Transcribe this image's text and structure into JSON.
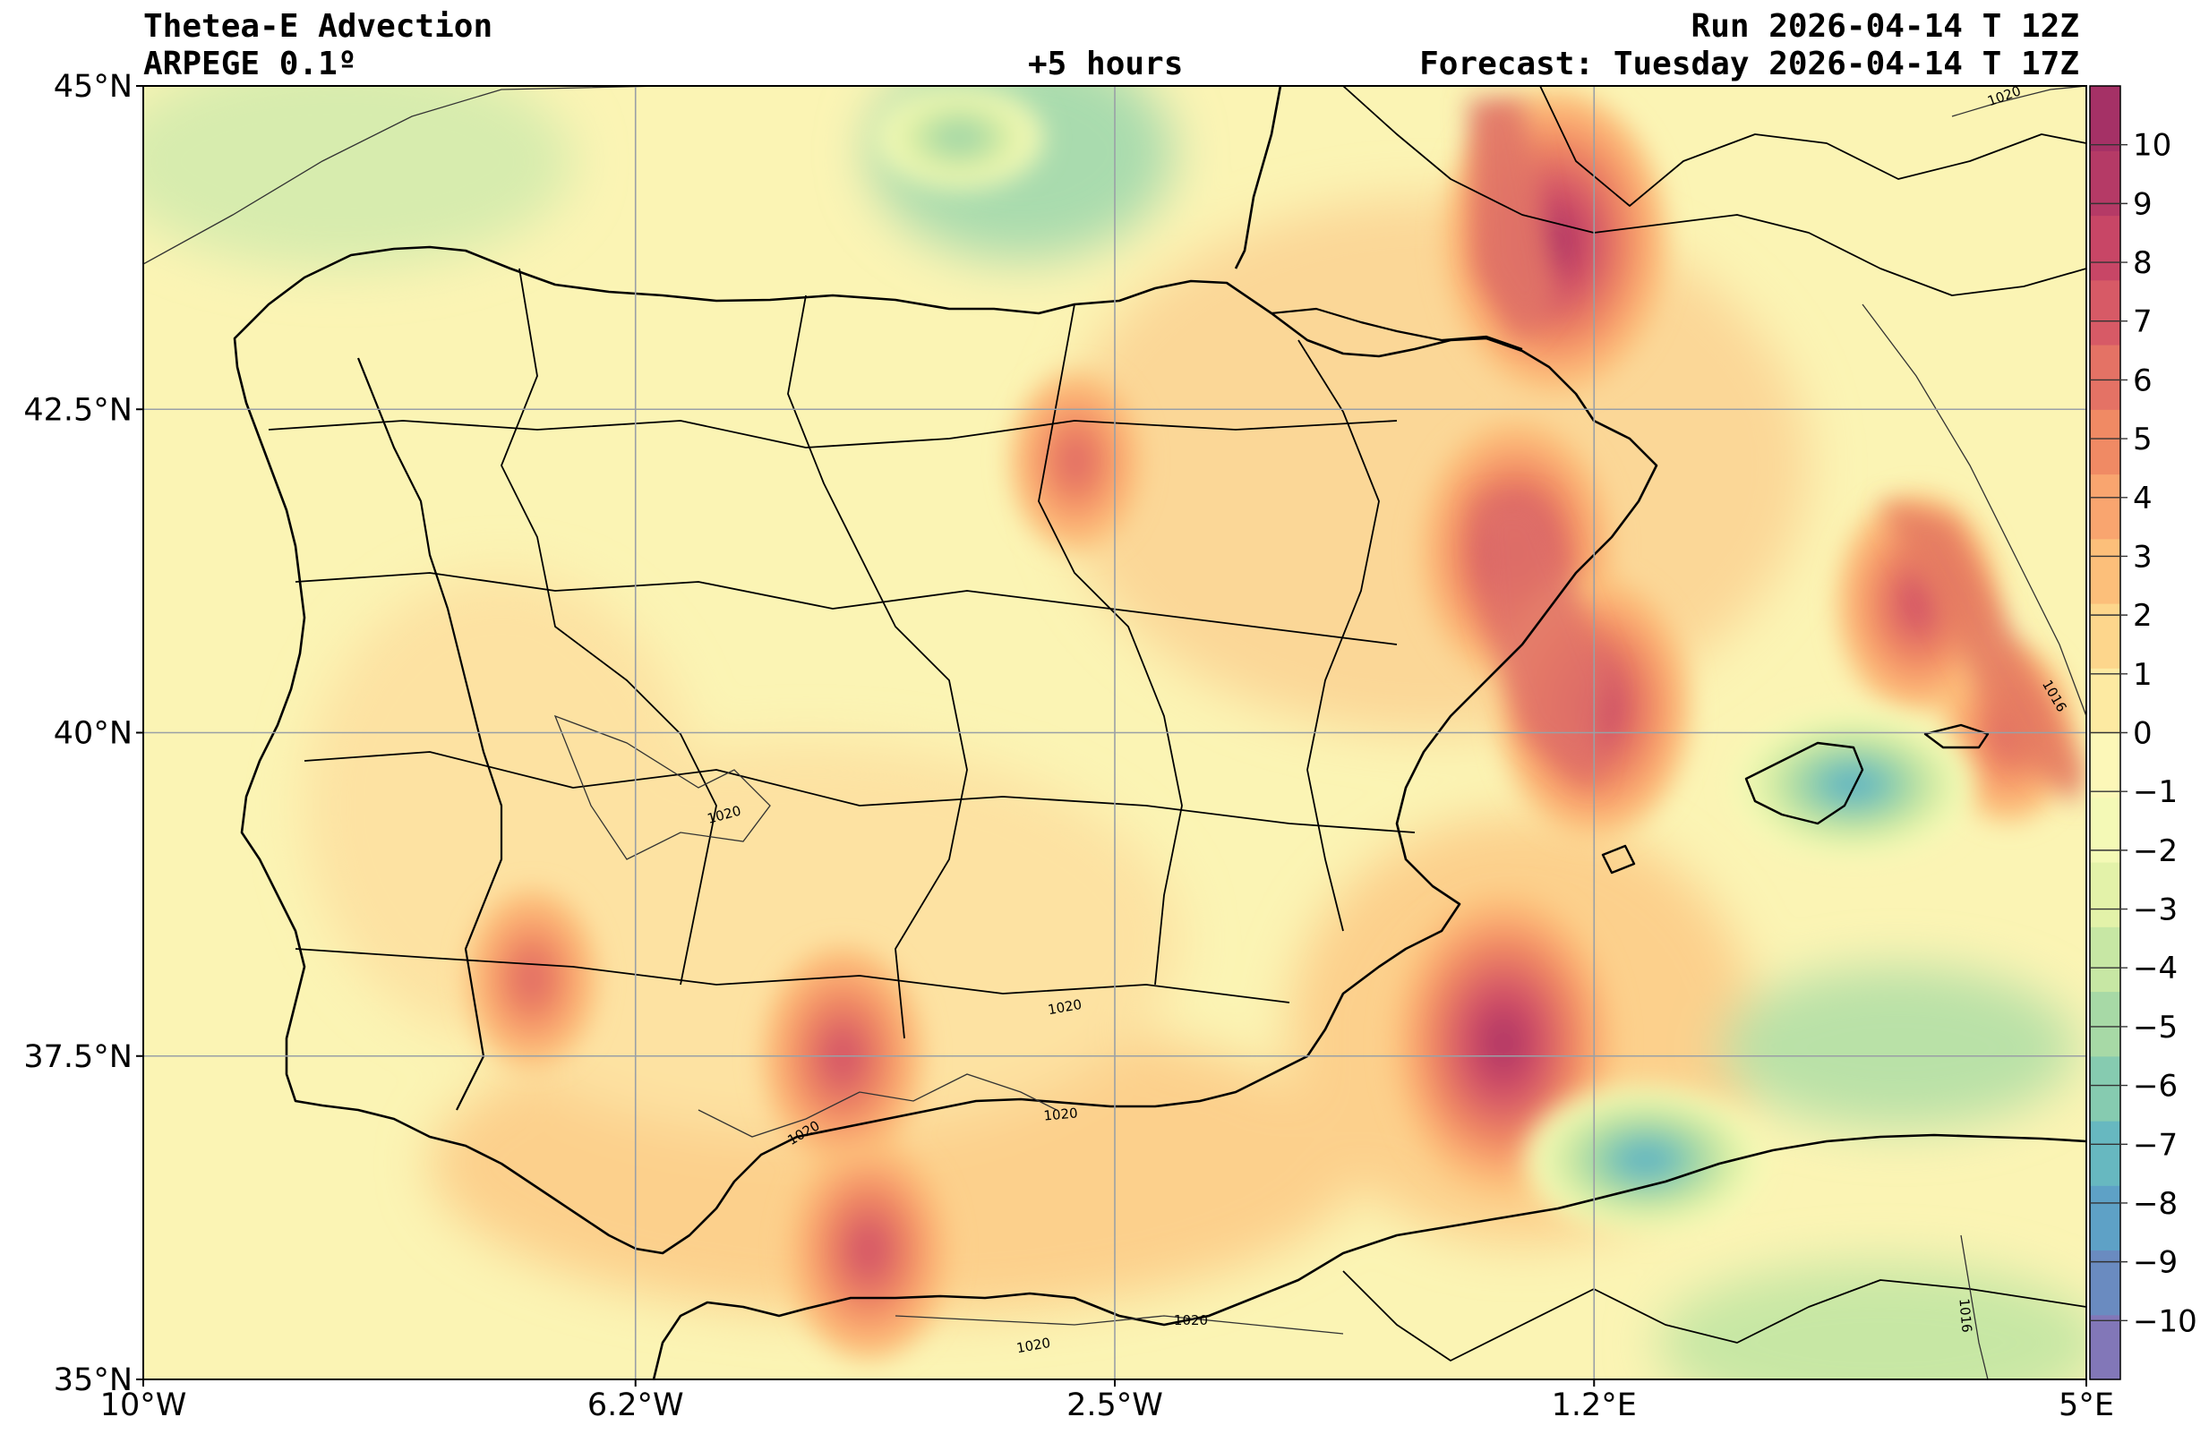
{
  "header": {
    "title_line1": "Thetea-E Advection",
    "title_line2": "ARPEGE 0.1º",
    "lead": "+5 hours",
    "run": "Run 2026-04-14 T 12Z",
    "forecast": "Forecast: Tuesday 2026-04-14 T 17Z"
  },
  "axes": {
    "lat_labels": [
      "45°N",
      "42.5°N",
      "40°N",
      "37.5°N",
      "35°N"
    ],
    "lon_labels": [
      "10°W",
      "6.2°W",
      "2.5°W",
      "1.2°E",
      "5°E"
    ],
    "lat_values": [
      45,
      42.5,
      40,
      37.5,
      35
    ],
    "lon_values": [
      -10,
      -6.2,
      -2.5,
      1.2,
      5
    ],
    "lat_range": [
      35,
      45
    ],
    "lon_range": [
      -10,
      5
    ],
    "grid": true
  },
  "colorbar": {
    "labels": [
      "10",
      "9",
      "8",
      "7",
      "6",
      "5",
      "4",
      "3",
      "2",
      "1",
      "0",
      "−1",
      "−2",
      "−3",
      "−4",
      "−5",
      "−6",
      "−7",
      "−8",
      "−9",
      "−10"
    ],
    "range": [
      -11,
      11
    ],
    "colors": [
      "#8277b8",
      "#6a8bc0",
      "#5ea1c6",
      "#67b8c0",
      "#86cbb0",
      "#a7d9a6",
      "#c7e7a4",
      "#e3f2a9",
      "#f4f9b6",
      "#fcf7b8",
      "#fdeaa2",
      "#fdd68c",
      "#fcbf7a",
      "#f9a56f",
      "#f08a64",
      "#e47265",
      "#d75a66",
      "#c84666",
      "#b53a66",
      "#a53166"
    ]
  },
  "isobars": {
    "labels": [
      "1020",
      "1020",
      "1020",
      "1020",
      "1020",
      "1020",
      "1016",
      "1016",
      "1020"
    ]
  },
  "features": {
    "hotspots": [
      {
        "lon": 0.9,
        "lat": 43.8,
        "value": 9
      },
      {
        "lon": 0.6,
        "lat": 41.4,
        "value": 8
      },
      {
        "lon": 1.2,
        "lat": 40.2,
        "value": 8
      },
      {
        "lon": 0.5,
        "lat": 37.6,
        "value": 9
      },
      {
        "lon": -4.6,
        "lat": 37.5,
        "value": 7
      },
      {
        "lon": -4.4,
        "lat": 36.0,
        "value": 7
      },
      {
        "lon": 3.7,
        "lat": 41.0,
        "value": 7
      },
      {
        "lon": 4.4,
        "lat": 40.0,
        "value": 6
      },
      {
        "lon": -2.8,
        "lat": 42.1,
        "value": 6
      },
      {
        "lon": -7.0,
        "lat": 38.1,
        "value": 6
      }
    ],
    "coldspots": [
      {
        "lon": 3.2,
        "lat": 39.6,
        "value": -7
      },
      {
        "lon": 1.6,
        "lat": 36.7,
        "value": -7
      },
      {
        "lon": -3.7,
        "lat": 44.6,
        "value": -5
      }
    ]
  }
}
